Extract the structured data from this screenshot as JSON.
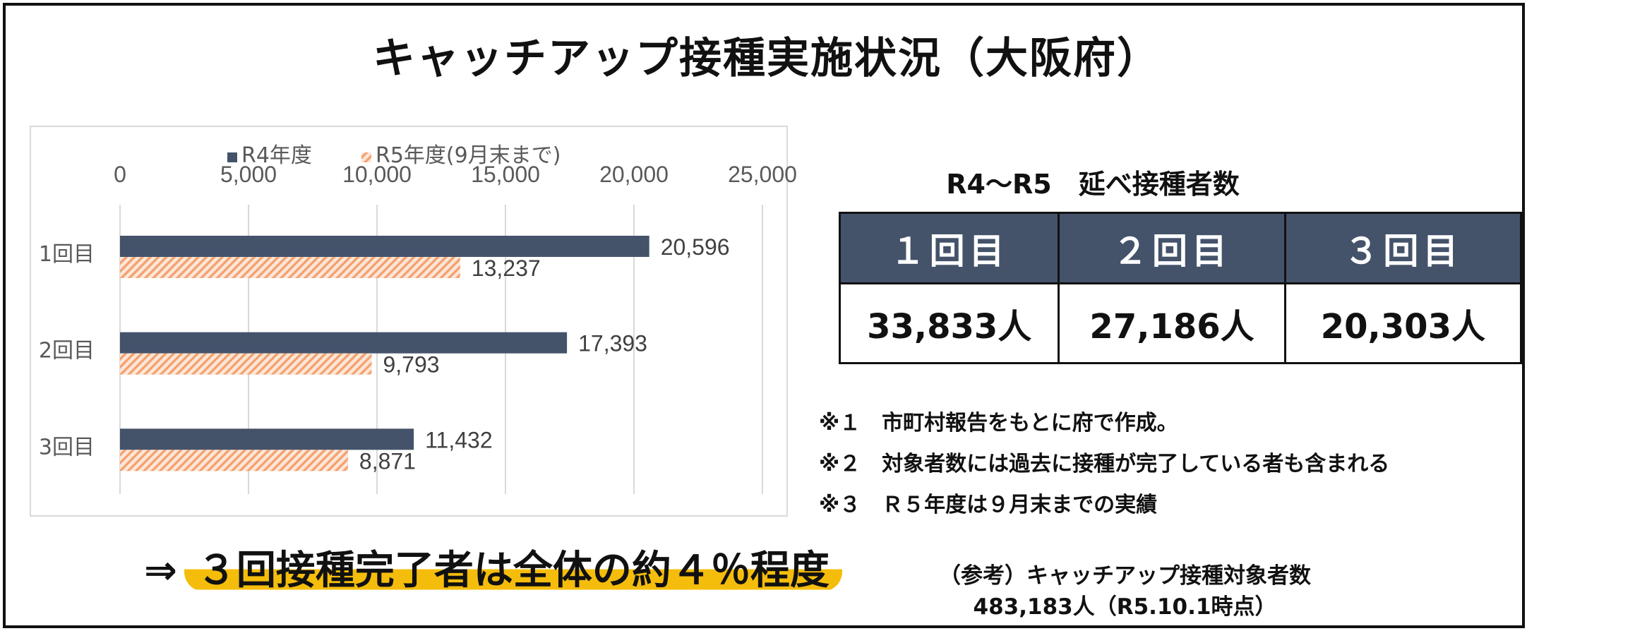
{
  "title": "キャッチアップ接種実施状況（大阪府）",
  "chart_data": {
    "type": "bar",
    "orientation": "horizontal",
    "categories": [
      "1回目",
      "2回目",
      "3回目"
    ],
    "series": [
      {
        "name": "R4年度",
        "values": [
          20596,
          17393,
          11432
        ],
        "labels": [
          "20,596",
          "17,393",
          "11,432"
        ],
        "color": "#44536a",
        "pattern": "solid"
      },
      {
        "name": "R5年度(9月末まで)",
        "values": [
          13237,
          9793,
          8871
        ],
        "labels": [
          "13,237",
          "9,793",
          "8,871"
        ],
        "color": "#f4a373",
        "pattern": "hatched"
      }
    ],
    "xlim": [
      0,
      25000
    ],
    "xticks": [
      0,
      5000,
      10000,
      15000,
      20000,
      25000
    ],
    "xtick_labels": [
      "0",
      "5,000",
      "10,000",
      "15,000",
      "20,000",
      "25,000"
    ],
    "grid": true,
    "legend_position": "top",
    "axis_position": "top"
  },
  "table": {
    "title": "R4〜R5　延べ接種者数",
    "headers": [
      "１回目",
      "２回目",
      "３回目"
    ],
    "values": [
      "33,833人",
      "27,186人",
      "20,303人"
    ],
    "header_color": "#44536a"
  },
  "notes": [
    "※１　市町村報告をもとに府で作成。",
    "※２　対象者数には過去に接種が完了している者も含まれる",
    "※３　Ｒ５年度は９月末までの実績"
  ],
  "conclusion": {
    "arrow": "⇒",
    "text": "３回接種完了者は全体の約４％程度",
    "highlight_color": "#f5bd0b"
  },
  "reference": {
    "line1": "（参考）キャッチアップ接種対象者数",
    "line2": "483,183人（R5.10.1時点）"
  }
}
